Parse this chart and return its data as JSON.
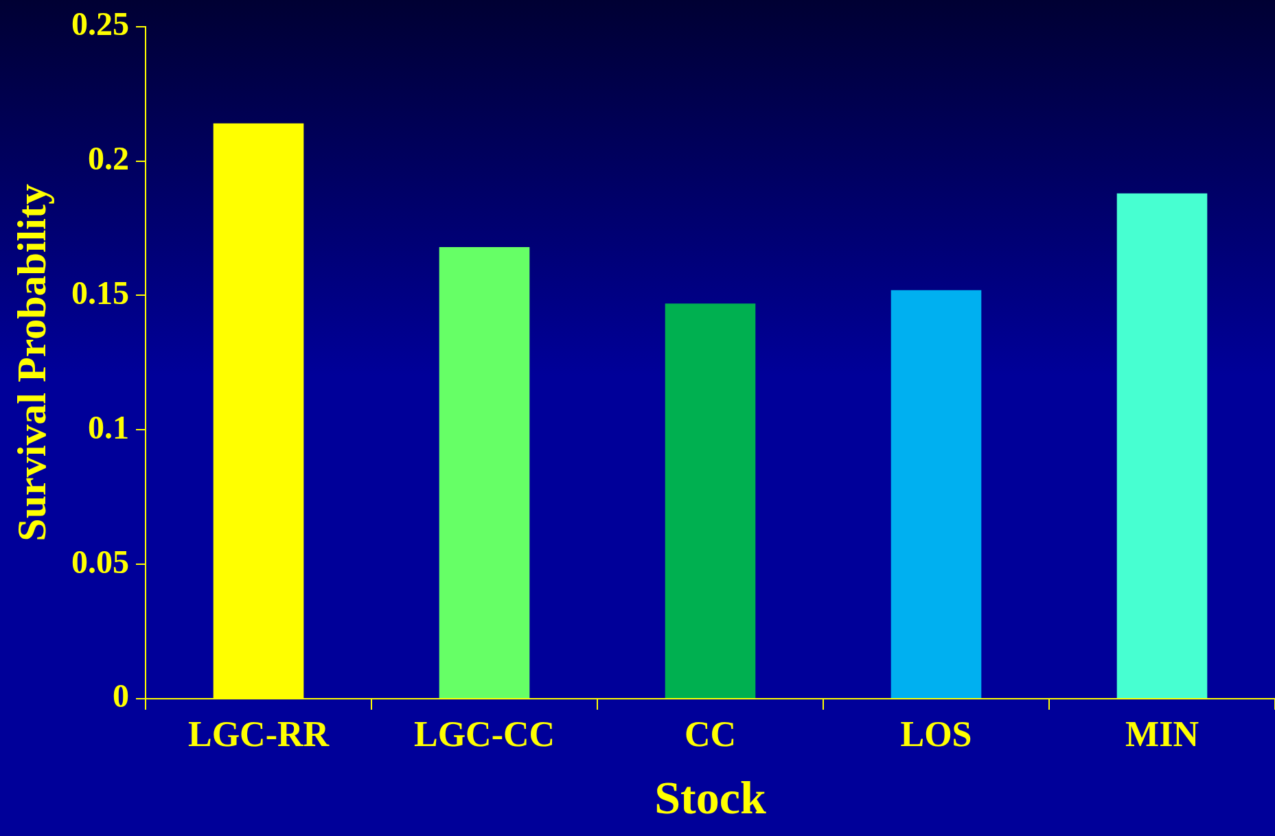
{
  "chart_data": {
    "type": "bar",
    "xlabel": "Stock",
    "ylabel": "Survival Probability",
    "categories": [
      "LGC-RR",
      "LGC-CC",
      "CC",
      "LOS",
      "MIN"
    ],
    "values": [
      0.214,
      0.168,
      0.147,
      0.152,
      0.188
    ],
    "colors": [
      "#ffff00",
      "#66ff66",
      "#00b050",
      "#00b0f0",
      "#47ffd1"
    ],
    "ylim": [
      0,
      0.25
    ],
    "yticks": [
      0,
      0.05,
      0.1,
      0.15,
      0.2,
      0.25
    ]
  }
}
